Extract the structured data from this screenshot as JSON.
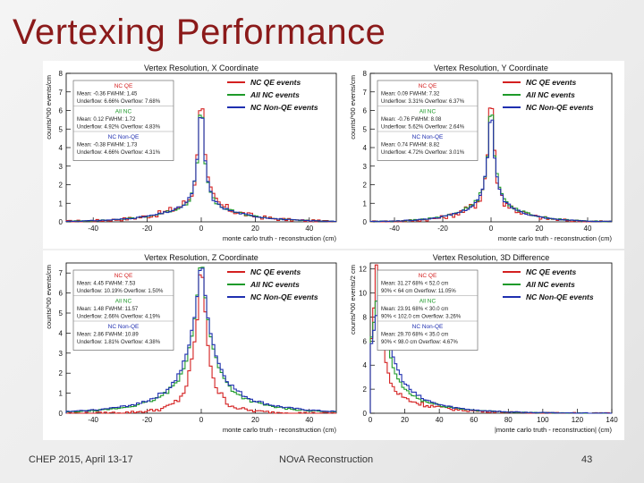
{
  "slide": {
    "title": "Vertexing Performance",
    "footer_left": "CHEP 2015,  April 13-17",
    "footer_center": "NOvA Reconstruction",
    "page_number": "43"
  },
  "colors": {
    "title": "#8b1a1a",
    "qe": "#d42020",
    "all": "#1e9a2a",
    "nonqe": "#1f2fb0"
  },
  "chart_data": [
    {
      "type": "line",
      "title": "Vertex Resolution, X Coordinate",
      "xlabel": "monte carlo truth - reconstruction (cm)",
      "ylabel": "counts/*00 events/cm",
      "xlim": [
        -50,
        50
      ],
      "ylim": [
        0,
        8
      ],
      "xticks": [
        "-40",
        "-20",
        "0",
        "20",
        "40"
      ],
      "yticks": [
        "0",
        "1",
        "2",
        "3",
        "4",
        "5",
        "6",
        "7",
        "8"
      ],
      "legend": [
        "NC QE events",
        "All NC events",
        "NC Non-QE events"
      ],
      "stats": [
        {
          "name": "NC QE",
          "lines": [
            "Mean: -0.36  FWHM: 1.45",
            "Underflow: 6.66%  Overflow: 7.68%"
          ]
        },
        {
          "name": "All NC",
          "lines": [
            "Mean: 0.12  FWHM: 1.72",
            "Underflow: 4.92%  Overflow: 4.83%"
          ]
        },
        {
          "name": "NC Non-QE",
          "lines": [
            "Mean: -0.38  FWHM: 1.73",
            "Underflow: 4.66%  Overflow: 4.31%"
          ]
        }
      ],
      "series": [
        {
          "name": "NC QE events",
          "peak": 7.2,
          "center": 0,
          "core": 1.2,
          "tail": 1.6,
          "tail_decay": 12,
          "noise": 0.35
        },
        {
          "name": "All NC events",
          "peak": 6.3,
          "center": 0,
          "core": 1.3,
          "tail": 1.4,
          "tail_decay": 13,
          "noise": 0.12
        },
        {
          "name": "NC Non-QE events",
          "peak": 6.0,
          "center": 0,
          "core": 1.4,
          "tail": 1.4,
          "tail_decay": 13,
          "noise": 0.1
        }
      ]
    },
    {
      "type": "line",
      "title": "Vertex Resolution, Y Coordinate",
      "xlabel": "monte carlo truth - reconstruction (cm)",
      "ylabel": "counts/*00 events/cm",
      "xlim": [
        -50,
        50
      ],
      "ylim": [
        0,
        8
      ],
      "xticks": [
        "-40",
        "-20",
        "0",
        "20",
        "40"
      ],
      "yticks": [
        "0",
        "1",
        "2",
        "3",
        "4",
        "5",
        "6",
        "7",
        "8"
      ],
      "legend": [
        "NC QE events",
        "All NC events",
        "NC Non-QE events"
      ],
      "stats": [
        {
          "name": "NC QE",
          "lines": [
            "Mean: 0.09  FWHM: 7.32",
            "Underflow: 3.31%  Overflow: 6.37%"
          ]
        },
        {
          "name": "All NC",
          "lines": [
            "Mean: -0.76  FWHM: 8.08",
            "Underflow: 5.62%  Overflow: 2.64%"
          ]
        },
        {
          "name": "NC Non-QE",
          "lines": [
            "Mean: 0.74  FWHM: 8.82",
            "Underflow: 4.72%  Overflow: 3.01%"
          ]
        }
      ],
      "series": [
        {
          "name": "NC QE events",
          "peak": 6.6,
          "center": 0,
          "core": 1.3,
          "tail": 1.8,
          "tail_decay": 10,
          "noise": 0.35
        },
        {
          "name": "All NC events",
          "peak": 5.6,
          "center": 0,
          "core": 1.5,
          "tail": 1.8,
          "tail_decay": 11,
          "noise": 0.12
        },
        {
          "name": "NC Non-QE events",
          "peak": 5.3,
          "center": 0,
          "core": 1.5,
          "tail": 1.7,
          "tail_decay": 11,
          "noise": 0.1
        }
      ]
    },
    {
      "type": "line",
      "title": "Vertex Resolution, Z Coordinate",
      "xlabel": "monte carlo truth - reconstruction (cm)",
      "ylabel": "counts/*00 events/cm",
      "xlim": [
        -50,
        50
      ],
      "ylim": [
        0,
        7.5
      ],
      "xticks": [
        "-40",
        "-20",
        "0",
        "20",
        "40"
      ],
      "yticks": [
        "0",
        "1",
        "2",
        "3",
        "4",
        "5",
        "6",
        "7"
      ],
      "legend": [
        "NC QE events",
        "All NC events",
        "NC Non-QE events"
      ],
      "stats": [
        {
          "name": "NC QE",
          "lines": [
            "Mean: 4.45  FWHM: 7.53",
            "Underflow: 10.19%  Overflow: 1.50%"
          ]
        },
        {
          "name": "All NC",
          "lines": [
            "Mean: 1.48  FWHM: 11.57",
            "Underflow: 2.66%  Overflow: 4.19%"
          ]
        },
        {
          "name": "NC Non-QE",
          "lines": [
            "Mean: 2.86  FWHM: 10.89",
            "Underflow: 1.81%  Overflow: 4.38%"
          ]
        }
      ],
      "series": [
        {
          "name": "NC QE events",
          "peak": 6.8,
          "center": 0,
          "core": 2.5,
          "tail": 1.3,
          "tail_decay": 8,
          "noise": 0.3
        },
        {
          "name": "All NC events",
          "peak": 5.9,
          "center": 0,
          "core": 3.5,
          "tail": 2.2,
          "tail_decay": 14,
          "noise": 0.12
        },
        {
          "name": "NC Non-QE events",
          "peak": 5.6,
          "center": 0,
          "core": 3.8,
          "tail": 2.3,
          "tail_decay": 15,
          "noise": 0.12
        }
      ]
    },
    {
      "type": "line",
      "title": "Vertex Resolution, 3D Difference",
      "xlabel": "|monte carlo truth - reconstruction| (cm)",
      "ylabel": "counts/*00 events/2 cm",
      "xlim": [
        0,
        140
      ],
      "ylim": [
        0,
        12.5
      ],
      "xticks": [
        "0",
        "20",
        "40",
        "60",
        "80",
        "100",
        "120",
        "140"
      ],
      "yticks": [
        "0",
        "2",
        "4",
        "6",
        "8",
        "10",
        "12"
      ],
      "legend": [
        "NC QE events",
        "All NC events",
        "NC Non-QE events"
      ],
      "stats": [
        {
          "name": "NC QE",
          "lines": [
            "Mean: 31.27  68% < 52.0 cm",
            "90% < 64 cm  Overflow: 11.05%"
          ]
        },
        {
          "name": "All NC",
          "lines": [
            "Mean: 23.91  68% < 30.0 cm",
            "90% < 102.0 cm  Overflow: 3.26%"
          ]
        },
        {
          "name": "NC Non-QE",
          "lines": [
            "Mean: 29.70  68% < 35.0 cm",
            "90% < 98.0 cm  Overflow: 4.67%"
          ]
        }
      ],
      "series": [
        {
          "name": "NC QE events",
          "peak": 12.0,
          "center": 4,
          "core": 3,
          "tail": 2.5,
          "tail_decay": 22,
          "noise": 0.3
        },
        {
          "name": "All NC events",
          "peak": 8.5,
          "center": 5,
          "core": 5,
          "tail": 3.2,
          "tail_decay": 22,
          "noise": 0.15
        },
        {
          "name": "NC Non-QE events",
          "peak": 8.0,
          "center": 6,
          "core": 6,
          "tail": 3.3,
          "tail_decay": 22,
          "noise": 0.15
        }
      ]
    }
  ]
}
